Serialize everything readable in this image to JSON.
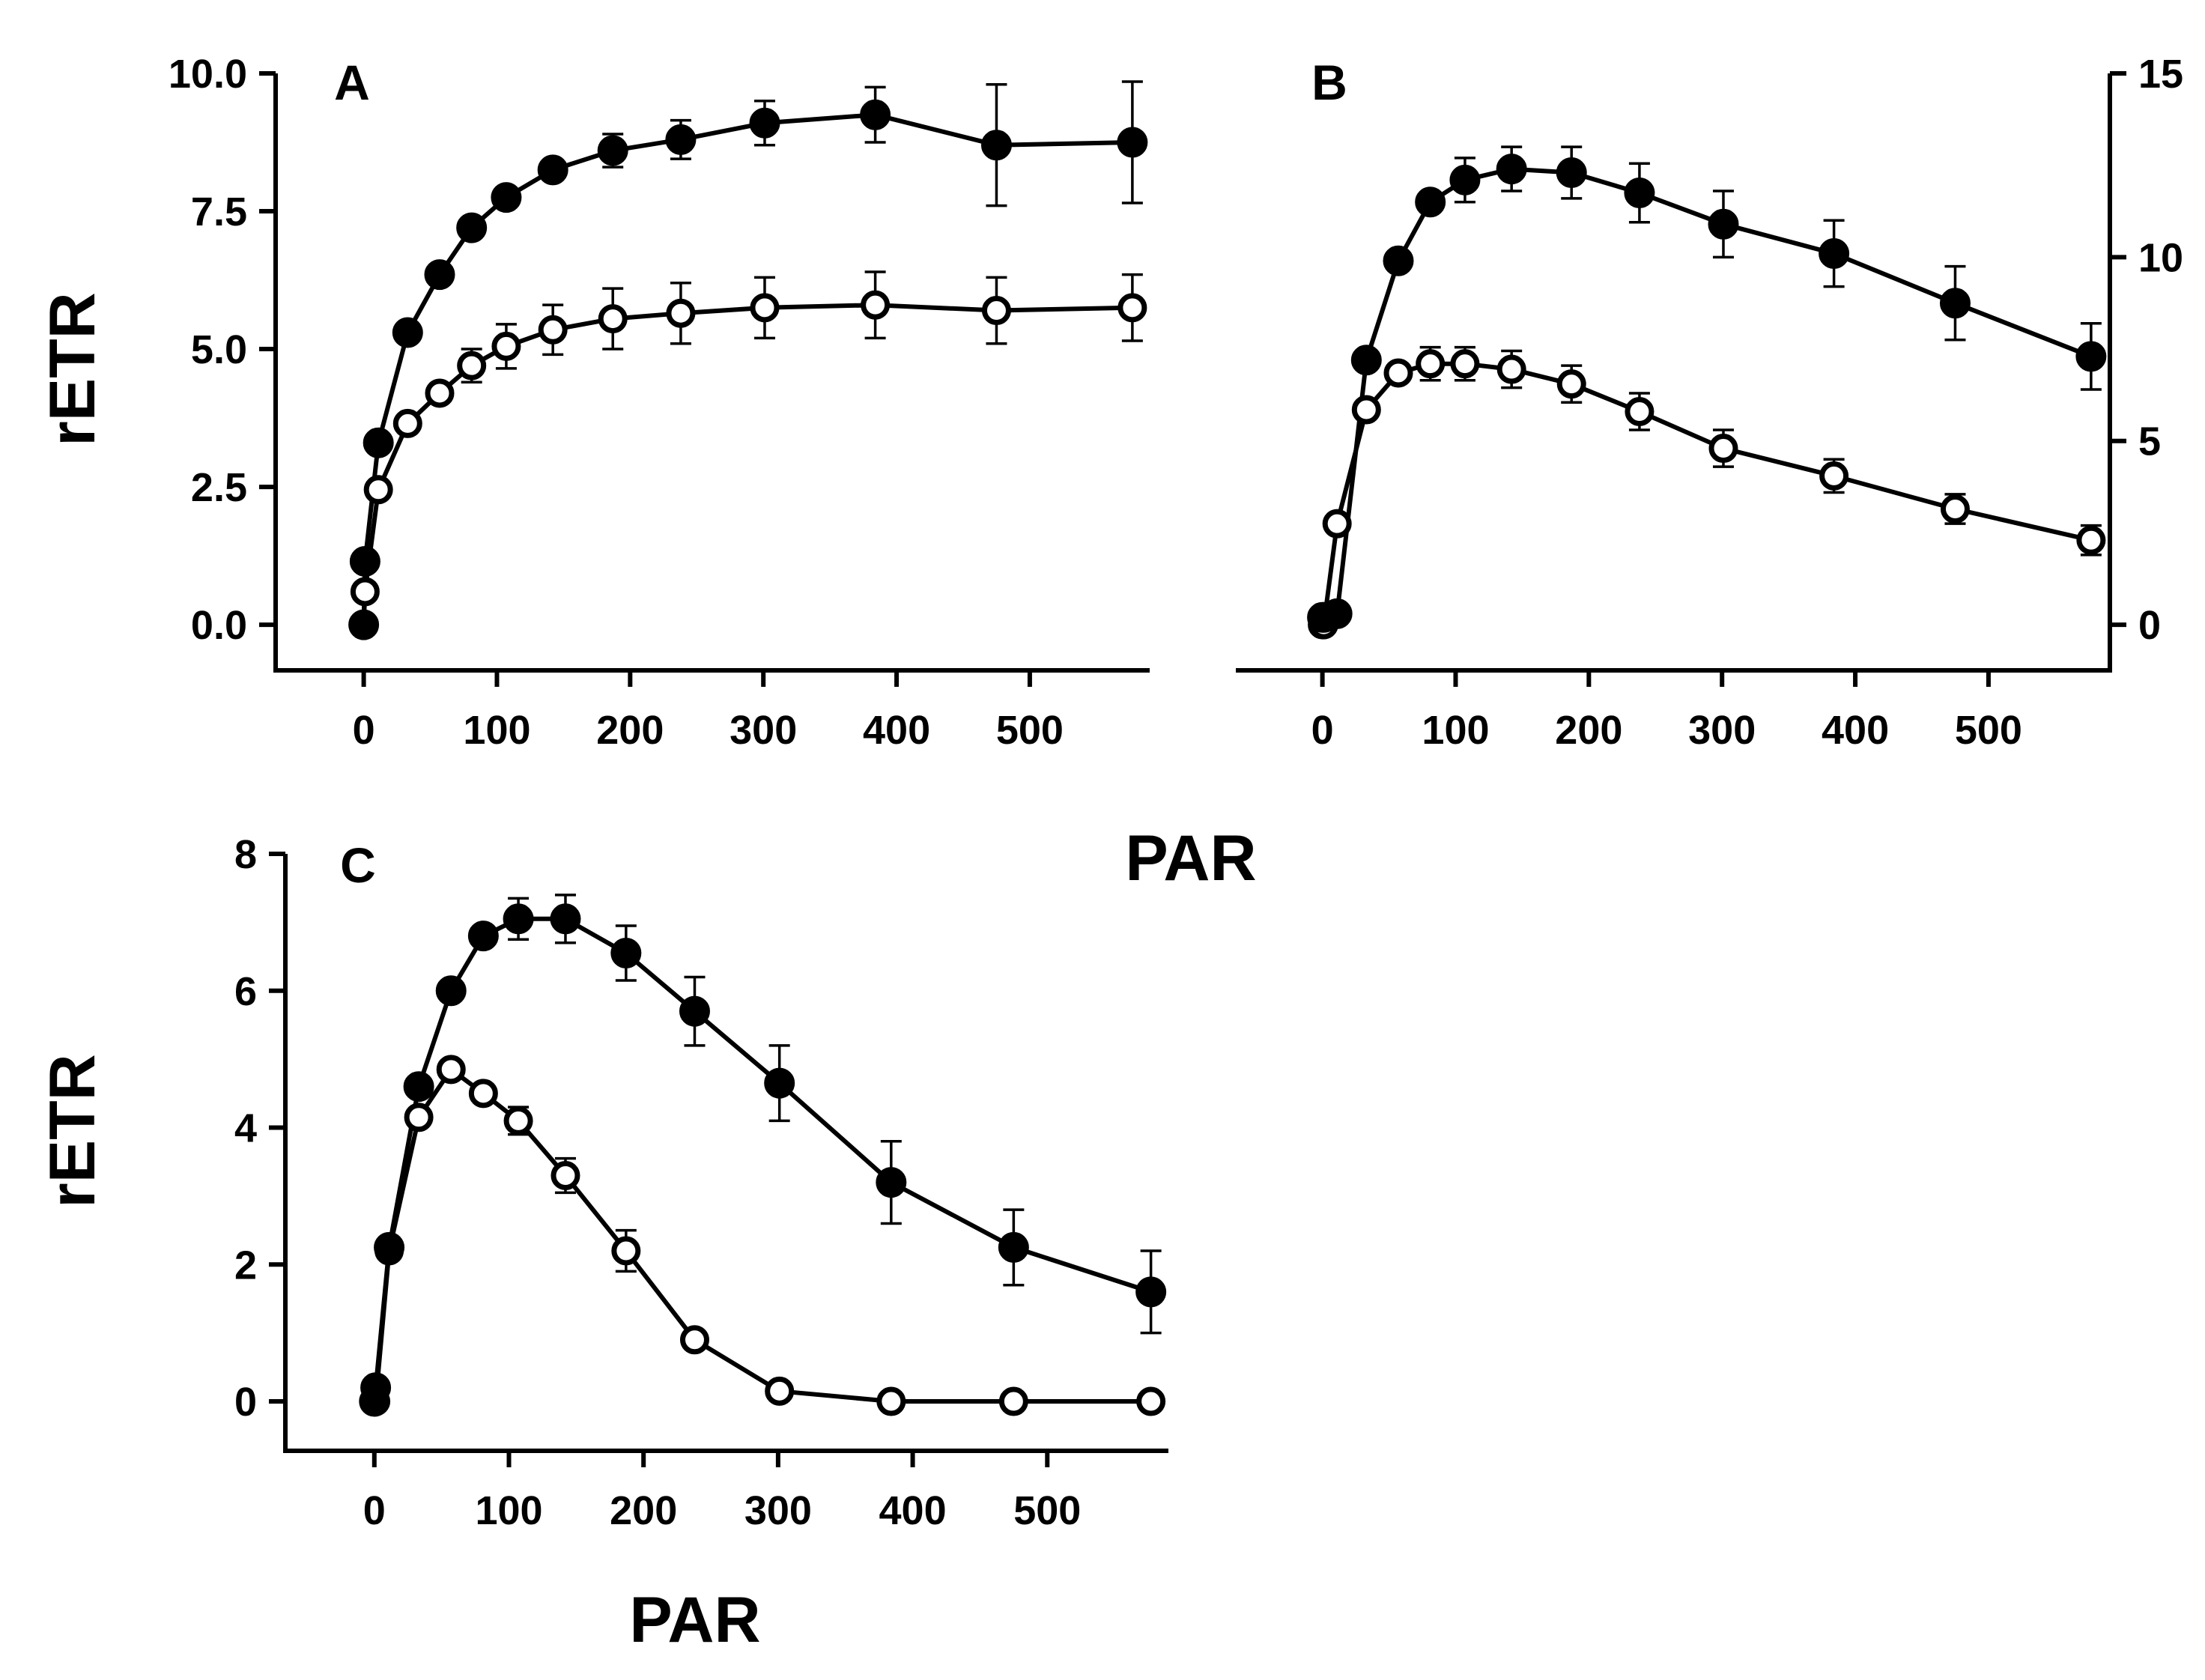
{
  "figure": {
    "shared_xlabel": "PAR"
  },
  "style": {
    "ink": "#000000",
    "open_fill": "#ffffff"
  },
  "chart_data": [
    {
      "panel": "A",
      "type": "line",
      "xlabel": "",
      "ylabel": "rETR",
      "xlim": [
        -65,
        590
      ],
      "ylim": [
        -0.8,
        10.0
      ],
      "xticks": [
        0,
        100,
        200,
        300,
        400,
        500
      ],
      "yticks": [
        0.0,
        2.5,
        5.0,
        7.5,
        10.0
      ],
      "ytick_labels": [
        "0.0",
        "2.5",
        "5.0",
        "7.5",
        "10.0"
      ],
      "y_axis_side": "left",
      "x": [
        0,
        1,
        11,
        33,
        57,
        81,
        107,
        142,
        187,
        238,
        301,
        384,
        475,
        577
      ],
      "series": [
        {
          "name": "filled",
          "marker": "filled-circle",
          "x": [
            0,
            1,
            11,
            33,
            57,
            81,
            107,
            142,
            187,
            238,
            301,
            384,
            475,
            577
          ],
          "values": [
            0.0,
            1.15,
            3.3,
            5.3,
            6.35,
            7.2,
            7.75,
            8.25,
            8.6,
            8.8,
            9.1,
            9.25,
            8.7,
            8.75
          ],
          "errors": [
            0,
            0,
            0,
            0,
            0,
            0,
            0,
            0,
            0.3,
            0.35,
            0.4,
            0.5,
            1.1,
            1.1
          ]
        },
        {
          "name": "open",
          "marker": "open-circle",
          "x": [
            0,
            1,
            11,
            33,
            57,
            81,
            107,
            142,
            187,
            238,
            301,
            384,
            475,
            577
          ],
          "values": [
            0.0,
            0.6,
            2.45,
            3.65,
            4.2,
            4.7,
            5.05,
            5.35,
            5.55,
            5.65,
            5.75,
            5.8,
            5.7,
            5.75
          ],
          "errors": [
            0,
            0,
            0,
            0,
            0,
            0.3,
            0.4,
            0.45,
            0.55,
            0.55,
            0.55,
            0.6,
            0.6,
            0.6
          ]
        }
      ]
    },
    {
      "panel": "B",
      "type": "line",
      "xlabel": "PAR",
      "ylabel": "",
      "xlim": [
        -65,
        590
      ],
      "ylim": [
        -1.2,
        15
      ],
      "xticks": [
        0,
        100,
        200,
        300,
        400,
        500
      ],
      "yticks": [
        0,
        5,
        10,
        15
      ],
      "ytick_labels": [
        "0",
        "5",
        "10",
        "15"
      ],
      "y_axis_side": "right",
      "series": [
        {
          "name": "filled",
          "marker": "filled-circle",
          "x": [
            0,
            1,
            11,
            33,
            57,
            81,
            107,
            142,
            187,
            238,
            301,
            384,
            475,
            577
          ],
          "values": [
            0.2,
            0.2,
            0.3,
            7.2,
            9.9,
            11.5,
            12.1,
            12.4,
            12.3,
            11.75,
            10.9,
            10.1,
            8.75,
            7.3
          ],
          "errors": [
            0,
            0,
            0,
            0,
            0,
            0,
            0.6,
            0.6,
            0.7,
            0.8,
            0.9,
            0.9,
            1.0,
            0.9
          ]
        },
        {
          "name": "open",
          "marker": "open-circle",
          "x": [
            0,
            1,
            11,
            33,
            57,
            81,
            107,
            142,
            187,
            238,
            301,
            384,
            475,
            577
          ],
          "values": [
            0.0,
            0.0,
            2.75,
            5.85,
            6.85,
            7.1,
            7.1,
            6.95,
            6.55,
            5.8,
            4.8,
            4.05,
            3.15,
            2.3
          ],
          "errors": [
            0,
            0,
            0,
            0,
            0,
            0.45,
            0.45,
            0.5,
            0.5,
            0.5,
            0.5,
            0.45,
            0.4,
            0.4
          ]
        }
      ]
    },
    {
      "panel": "C",
      "type": "line",
      "xlabel": "PAR",
      "ylabel": "rETR",
      "xlim": [
        -65,
        590
      ],
      "ylim": [
        -0.7,
        8
      ],
      "xticks": [
        0,
        100,
        200,
        300,
        400,
        500
      ],
      "yticks": [
        0,
        2,
        4,
        6,
        8
      ],
      "ytick_labels": [
        "0",
        "2",
        "4",
        "6",
        "8"
      ],
      "y_axis_side": "left",
      "series": [
        {
          "name": "filled",
          "marker": "filled-circle",
          "x": [
            0,
            1,
            11,
            33,
            57,
            81,
            107,
            142,
            187,
            238,
            301,
            384,
            475,
            577
          ],
          "values": [
            0.0,
            0.2,
            2.25,
            4.6,
            6.0,
            6.8,
            7.05,
            7.05,
            6.55,
            5.7,
            4.65,
            3.2,
            2.25,
            1.6
          ],
          "errors": [
            0,
            0,
            0,
            0,
            0,
            0,
            0.3,
            0.35,
            0.4,
            0.5,
            0.55,
            0.6,
            0.55,
            0.6
          ]
        },
        {
          "name": "open",
          "marker": "open-circle",
          "x": [
            0,
            1,
            11,
            33,
            57,
            81,
            107,
            142,
            187,
            238,
            301,
            384,
            475,
            577
          ],
          "values": [
            0.0,
            0.0,
            2.2,
            4.15,
            4.85,
            4.5,
            4.1,
            3.3,
            2.2,
            0.9,
            0.15,
            0.0,
            0.0,
            0.0
          ],
          "errors": [
            0,
            0,
            0,
            0,
            0,
            0,
            0.2,
            0.25,
            0.3,
            0,
            0,
            0,
            0,
            0
          ]
        }
      ]
    }
  ]
}
